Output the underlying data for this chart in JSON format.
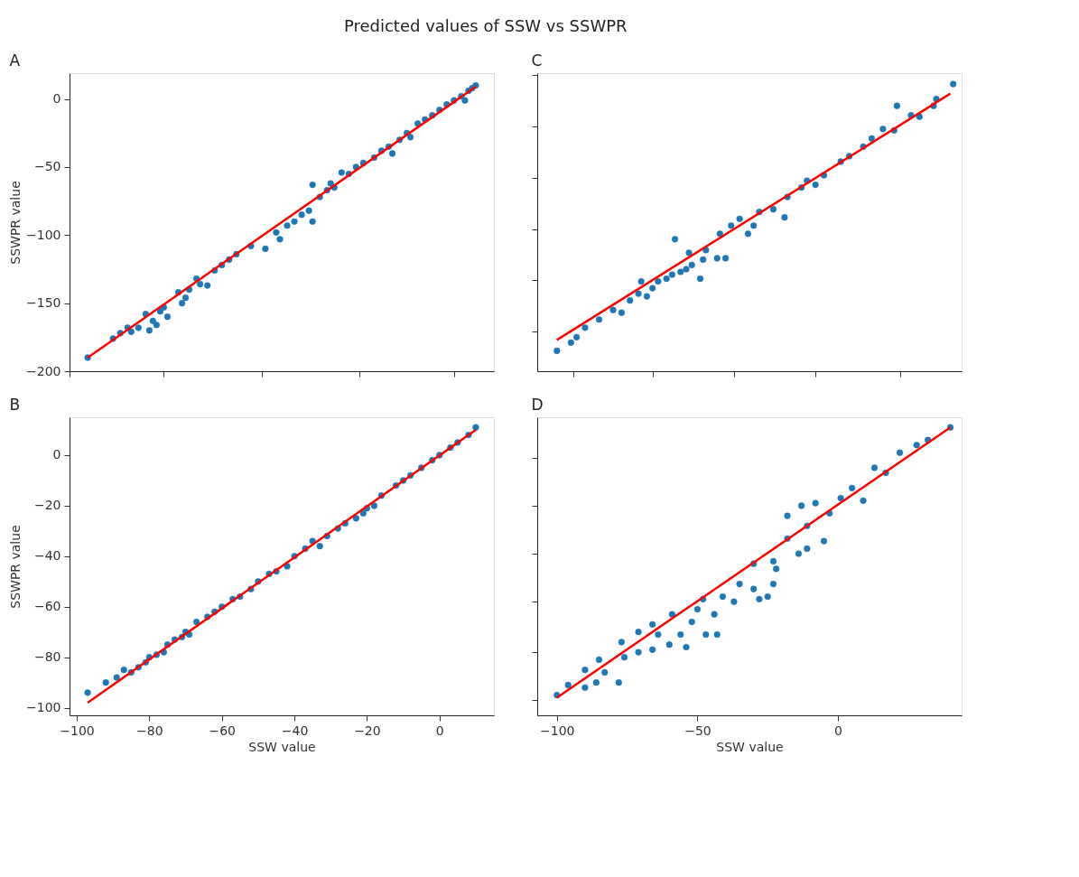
{
  "chart_data": [
    {
      "type": "scatter",
      "title": "A",
      "ylabel": "SSWPR value",
      "annotations": [
        "Predicted values of SSW vs SSWPR"
      ],
      "grid": false,
      "tick_labels": "y",
      "xlim": [
        -102,
        15
      ],
      "ylim": [
        -200,
        19
      ],
      "xticks": [
        {
          "value": -102,
          "label": null
        },
        {
          "value": -76,
          "label": null
        },
        {
          "value": -49,
          "label": null
        },
        {
          "value": -22,
          "label": null
        },
        {
          "value": 4,
          "label": null
        }
      ],
      "yticks": [
        -200,
        -150,
        -100,
        -50,
        0
      ],
      "series": [
        {
          "marker": "circle",
          "color": "#1f77b4",
          "x": [
            -97,
            -90,
            -88,
            -86,
            -85,
            -83,
            -81,
            -80,
            -79,
            -78,
            -77,
            -76,
            -75,
            -72,
            -71,
            -70,
            -69,
            -67,
            -66,
            -64,
            -62,
            -60,
            -58,
            -56,
            -52,
            -48,
            -45,
            -44,
            -42,
            -40,
            -38,
            -36,
            -35,
            -35,
            -33,
            -31,
            -30,
            -29,
            -27,
            -25,
            -23,
            -21,
            -18,
            -16,
            -14,
            -13,
            -11,
            -9,
            -8,
            -6,
            -4,
            -2,
            0,
            2,
            4,
            6,
            7,
            8,
            9,
            10
          ],
          "values": [
            -190,
            -176,
            -172,
            -168,
            -171,
            -168,
            -158,
            -170,
            -163,
            -166,
            -156,
            -153,
            -160,
            -142,
            -150,
            -146,
            -140,
            -132,
            -136,
            -137,
            -126,
            -122,
            -118,
            -114,
            -108,
            -110,
            -98,
            -103,
            -93,
            -90,
            -85,
            -82,
            -90,
            -63,
            -72,
            -67,
            -62,
            -65,
            -54,
            -55,
            -50,
            -47,
            -43,
            -38,
            -35,
            -40,
            -30,
            -25,
            -28,
            -18,
            -15,
            -12,
            -8,
            -4,
            -1,
            2,
            -1,
            6,
            8,
            10
          ]
        },
        {
          "type": "line",
          "marker": "none",
          "color": "#ff0000",
          "x": [
            -97,
            10
          ],
          "values": [
            -190,
            9
          ]
        }
      ]
    },
    {
      "type": "scatter",
      "title": "C",
      "grid": false,
      "tick_labels": false,
      "xlim": [
        -107,
        44
      ],
      "ylim": [
        -200,
        19
      ],
      "xticks": [
        {
          "value": -94,
          "label": null
        },
        {
          "value": -66,
          "label": null
        },
        {
          "value": -37,
          "label": null
        },
        {
          "value": -8,
          "label": null
        },
        {
          "value": 22,
          "label": null
        }
      ],
      "yticks": [
        {
          "value": -171,
          "label": null
        },
        {
          "value": -133,
          "label": null
        },
        {
          "value": -96,
          "label": null
        },
        {
          "value": -58,
          "label": null
        },
        {
          "value": -20,
          "label": null
        },
        {
          "value": 18,
          "label": null
        }
      ],
      "series": [
        {
          "marker": "circle",
          "color": "#1f77b4",
          "x": [
            -100,
            -95,
            -93,
            -90,
            -85,
            -80,
            -77,
            -74,
            -71,
            -68,
            -70,
            -66,
            -64,
            -61,
            -59,
            -58,
            -56,
            -54,
            -53,
            -52,
            -49,
            -48,
            -47,
            -43,
            -40,
            -42,
            -38,
            -35,
            -32,
            -30,
            -28,
            -23,
            -19,
            -18,
            -13,
            -11,
            -8,
            -5,
            1,
            4,
            9,
            12,
            16,
            21,
            20,
            26,
            29,
            34,
            35,
            41
          ],
          "values": [
            -185,
            -179,
            -175,
            -168,
            -162,
            -155,
            -157,
            -148,
            -143,
            -145,
            -134,
            -139,
            -134,
            -132,
            -129,
            -103,
            -127,
            -125,
            -113,
            -122,
            -132,
            -118,
            -111,
            -117,
            -117,
            -99,
            -93,
            -88,
            -99,
            -93,
            -83,
            -81,
            -87,
            -72,
            -65,
            -60,
            -63,
            -56,
            -46,
            -42,
            -35,
            -29,
            -22,
            -5,
            -23,
            -12,
            -13,
            -5,
            0,
            11
          ]
        },
        {
          "type": "line",
          "marker": "none",
          "color": "#ff0000",
          "x": [
            -100,
            40
          ],
          "values": [
            -177,
            4
          ]
        }
      ]
    },
    {
      "type": "scatter",
      "title": "B",
      "xlabel": "SSW value",
      "ylabel": "SSWPR value",
      "grid": false,
      "xlim": [
        -102,
        15
      ],
      "ylim": [
        -103,
        15
      ],
      "xticks": [
        -100,
        -80,
        -60,
        -40,
        -20,
        0
      ],
      "yticks": [
        -100,
        -80,
        -60,
        -40,
        -20,
        0
      ],
      "series": [
        {
          "marker": "circle",
          "color": "#1f77b4",
          "x": [
            -97,
            -92,
            -89,
            -87,
            -85,
            -83,
            -81,
            -80,
            -78,
            -76,
            -75,
            -73,
            -71,
            -70,
            -69,
            -67,
            -64,
            -62,
            -60,
            -57,
            -55,
            -52,
            -50,
            -47,
            -45,
            -42,
            -40,
            -37,
            -35,
            -33,
            -31,
            -28,
            -26,
            -23,
            -21,
            -20,
            -18,
            -16,
            -12,
            -10,
            -8,
            -5,
            -2,
            0,
            3,
            5,
            8,
            10
          ],
          "values": [
            -94,
            -90,
            -88,
            -85,
            -86,
            -84,
            -82,
            -80,
            -79,
            -78,
            -75,
            -73,
            -72,
            -70,
            -71,
            -66,
            -64,
            -62,
            -60,
            -57,
            -56,
            -53,
            -50,
            -47,
            -46,
            -44,
            -40,
            -37,
            -34,
            -36,
            -32,
            -29,
            -27,
            -25,
            -23,
            -21,
            -20,
            -16,
            -12,
            -10,
            -8,
            -5,
            -2,
            0,
            3,
            5,
            8,
            11
          ]
        },
        {
          "type": "line",
          "marker": "none",
          "color": "#ff0000",
          "x": [
            -97,
            10
          ],
          "values": [
            -98,
            10
          ]
        }
      ]
    },
    {
      "type": "scatter",
      "title": "D",
      "xlabel": "SSW value",
      "grid": false,
      "tick_labels": "x",
      "xlim": [
        -107,
        44
      ],
      "ylim": [
        -103,
        15
      ],
      "xticks": [
        -100,
        -50,
        0
      ],
      "yticks": [
        {
          "value": -97,
          "label": null
        },
        {
          "value": -78,
          "label": null
        },
        {
          "value": -58,
          "label": null
        },
        {
          "value": -39,
          "label": null
        },
        {
          "value": -20,
          "label": null
        },
        {
          "value": -1,
          "label": null
        }
      ],
      "series": [
        {
          "marker": "circle",
          "color": "#1f77b4",
          "x": [
            -100,
            -96,
            -90,
            -90,
            -86,
            -85,
            -83,
            -78,
            -77,
            -76,
            -71,
            -71,
            -66,
            -66,
            -64,
            -60,
            -59,
            -56,
            -54,
            -52,
            -50,
            -48,
            -47,
            -44,
            -43,
            -41,
            -37,
            -35,
            -30,
            -30,
            -28,
            -25,
            -23,
            -23,
            -22,
            -18,
            -18,
            -14,
            -13,
            -11,
            -11,
            -8,
            -5,
            -3,
            1,
            5,
            9,
            13,
            17,
            22,
            28,
            32,
            40
          ],
          "values": [
            -95,
            -91,
            -85,
            -92,
            -90,
            -81,
            -86,
            -90,
            -74,
            -80,
            -70,
            -78,
            -67,
            -77,
            -71,
            -75,
            -63,
            -71,
            -76,
            -66,
            -61,
            -57,
            -71,
            -63,
            -71,
            -56,
            -58,
            -51,
            -43,
            -53,
            -57,
            -56,
            -42,
            -51,
            -45,
            -33,
            -24,
            -39,
            -20,
            -37,
            -28,
            -19,
            -34,
            -23,
            -17,
            -13,
            -18,
            -5,
            -7,
            1,
            4,
            6,
            11
          ]
        },
        {
          "type": "line",
          "marker": "none",
          "color": "#ff0000",
          "x": [
            -100,
            40
          ],
          "values": [
            -96,
            11
          ]
        }
      ]
    }
  ]
}
